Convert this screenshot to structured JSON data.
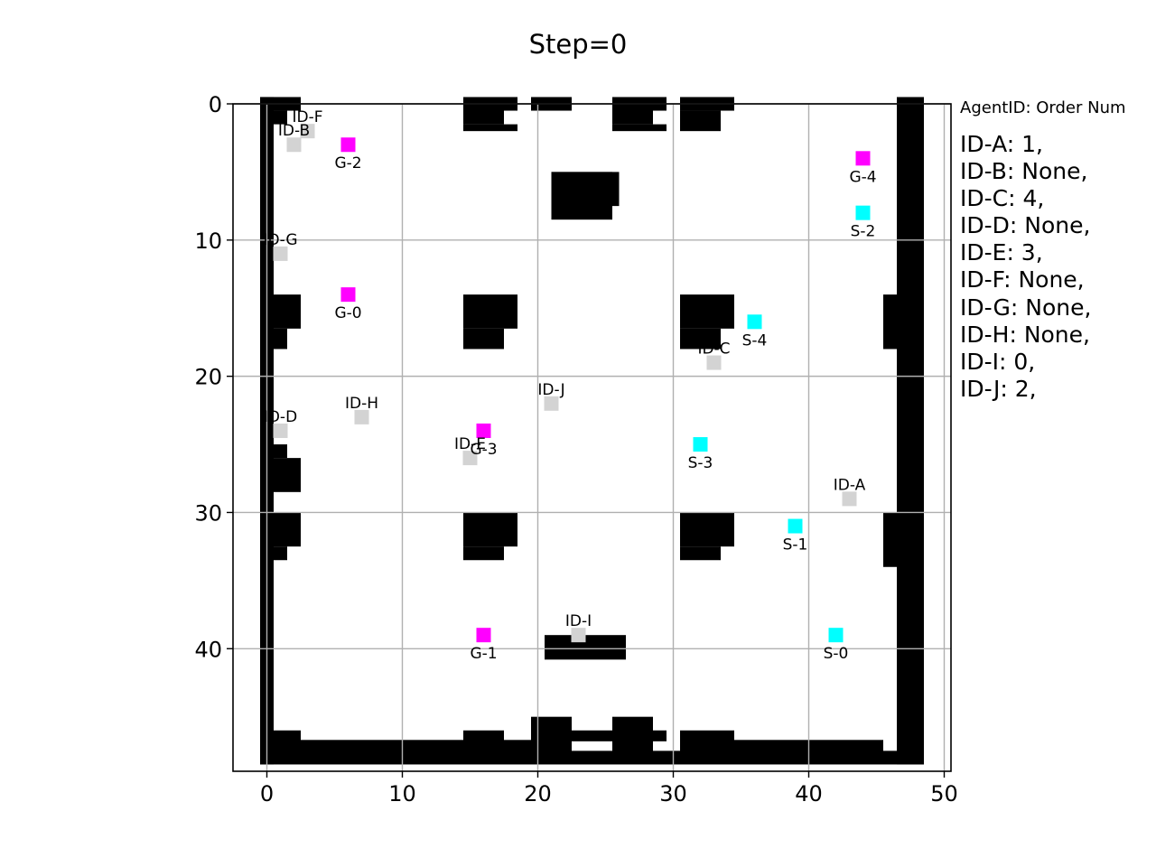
{
  "chart_data": {
    "type": "scatter",
    "title": "Step=0",
    "xlim": [
      -2.5,
      50.5
    ],
    "ylim": [
      49,
      0
    ],
    "y_inverted": true,
    "xticks": [
      0,
      10,
      20,
      30,
      40,
      50
    ],
    "yticks": [
      0,
      10,
      20,
      30,
      40
    ],
    "grid": true,
    "grid_size": [
      49,
      49
    ],
    "colors": {
      "goal": "#ff00ff",
      "start": "#00ffff",
      "agent": "#d3d3d3",
      "obstacle": "#000000",
      "grid": "#b0b0b0"
    },
    "obstacles": [
      [
        0,
        0,
        1,
        49
      ],
      [
        47,
        0,
        2,
        49
      ],
      [
        0,
        48,
        49,
        1
      ],
      [
        0,
        0,
        3,
        1
      ],
      [
        1,
        1,
        1,
        1
      ],
      [
        15,
        0,
        3,
        2
      ],
      [
        15,
        2,
        4,
        0.5
      ],
      [
        18,
        0,
        1,
        1
      ],
      [
        20,
        0,
        3,
        1
      ],
      [
        26,
        0,
        3,
        2
      ],
      [
        26,
        2,
        4,
        0.5
      ],
      [
        29,
        0,
        1,
        1
      ],
      [
        31,
        0,
        4,
        1
      ],
      [
        31,
        1,
        3,
        1.5
      ],
      [
        21.5,
        5.5,
        4.5,
        3.5
      ],
      [
        21.5,
        5.5,
        5,
        2.5
      ],
      [
        0,
        14.5,
        3,
        2.5
      ],
      [
        0,
        17,
        2,
        1.5
      ],
      [
        15,
        14.5,
        4,
        2.5
      ],
      [
        15,
        17,
        3,
        1.5
      ],
      [
        31,
        14.5,
        4,
        2.5
      ],
      [
        31,
        17,
        3,
        1.5
      ],
      [
        46,
        14.5,
        2,
        4
      ],
      [
        0,
        25.5,
        2,
        1
      ],
      [
        0,
        26.5,
        3,
        2.5
      ],
      [
        0,
        30.5,
        3,
        2.5
      ],
      [
        0,
        33,
        2,
        1
      ],
      [
        15,
        30.5,
        4,
        2.5
      ],
      [
        15,
        33,
        3,
        1
      ],
      [
        31,
        30.5,
        4,
        2.5
      ],
      [
        31,
        33,
        3,
        1
      ],
      [
        46,
        30.5,
        2,
        4
      ],
      [
        21,
        39.5,
        6,
        1.8
      ],
      [
        20,
        45.5,
        3,
        3
      ],
      [
        26,
        45.5,
        3,
        3
      ],
      [
        23,
        46.5,
        3,
        0.8
      ],
      [
        29,
        46.5,
        1,
        0.8
      ],
      [
        15,
        46.5,
        3,
        2
      ],
      [
        18,
        47.2,
        2,
        1
      ],
      [
        31,
        46.5,
        4,
        2
      ],
      [
        35,
        47.2,
        11,
        1
      ],
      [
        0,
        46.5,
        3,
        2
      ],
      [
        3,
        47.2,
        12,
        1
      ]
    ],
    "goals": [
      {
        "label": "G-0",
        "x": 6,
        "y": 14
      },
      {
        "label": "G-1",
        "x": 16,
        "y": 39
      },
      {
        "label": "G-2",
        "x": 6,
        "y": 3
      },
      {
        "label": "G-3",
        "x": 16,
        "y": 24
      },
      {
        "label": "G-4",
        "x": 44,
        "y": 4
      }
    ],
    "starts": [
      {
        "label": "S-0",
        "x": 42,
        "y": 39
      },
      {
        "label": "S-1",
        "x": 39,
        "y": 31
      },
      {
        "label": "S-2",
        "x": 44,
        "y": 8
      },
      {
        "label": "S-3",
        "x": 32,
        "y": 25
      },
      {
        "label": "S-4",
        "x": 36,
        "y": 16
      }
    ],
    "agents": [
      {
        "label": "ID-A",
        "x": 43,
        "y": 29
      },
      {
        "label": "ID-B",
        "x": 2,
        "y": 3
      },
      {
        "label": "ID-C",
        "x": 33,
        "y": 19
      },
      {
        "label": "ID-D",
        "x": 1,
        "y": 24
      },
      {
        "label": "ID-E",
        "x": 15,
        "y": 26
      },
      {
        "label": "ID-F",
        "x": 3,
        "y": 2
      },
      {
        "label": "ID-G",
        "x": 1,
        "y": 11
      },
      {
        "label": "ID-H",
        "x": 7,
        "y": 23
      },
      {
        "label": "ID-I",
        "x": 23,
        "y": 39
      },
      {
        "label": "ID-J",
        "x": 21,
        "y": 22
      }
    ]
  },
  "legend": {
    "header": "AgentID: Order Num",
    "entries": [
      "ID-A: 1,",
      "ID-B: None,",
      "ID-C: 4,",
      "ID-D: None,",
      "ID-E: 3,",
      "ID-F: None,",
      "ID-G: None,",
      "ID-H: None,",
      "ID-I: 0,",
      "ID-J: 2,"
    ]
  }
}
